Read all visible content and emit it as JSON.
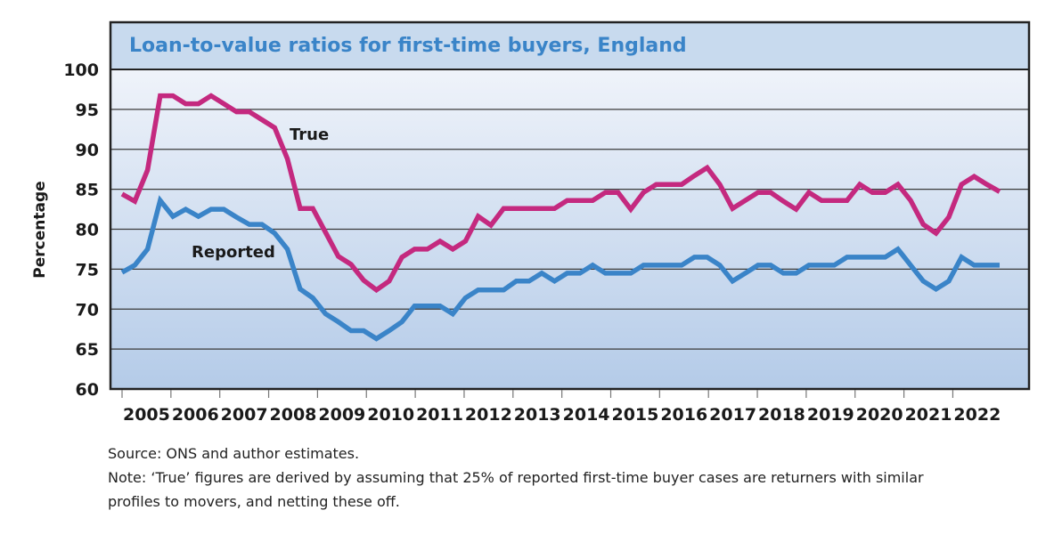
{
  "chart_data": {
    "type": "line",
    "title": "Loan-to-value ratios for first-time buyers, England",
    "xlabel": "",
    "ylabel": "Percentage",
    "ylim": [
      60,
      100
    ],
    "yticks": [
      60,
      65,
      70,
      75,
      80,
      85,
      90,
      95,
      100
    ],
    "ytick_labels": [
      "60",
      "65",
      "70",
      "75",
      "80",
      "85",
      "90",
      "95",
      "100"
    ],
    "xtick_labels": [
      "2005",
      "2006",
      "2007",
      "2008",
      "2009",
      "2010",
      "2011",
      "2012",
      "2013",
      "2014",
      "2015",
      "2016",
      "2017",
      "2018",
      "2019",
      "2020",
      "2021",
      "2022"
    ],
    "x_frequency": "quarterly",
    "x_start": "2005 Q1",
    "grid": "horizontal",
    "legend": "inline labels",
    "series": [
      {
        "name": "True",
        "label": "True",
        "color": "#c4297f",
        "values": [
          84.4,
          83.5,
          87.4,
          96.7,
          96.7,
          95.7,
          95.7,
          96.7,
          95.7,
          94.7,
          94.7,
          93.7,
          92.7,
          88.8,
          82.6,
          82.6,
          79.6,
          76.6,
          75.6,
          73.6,
          72.4,
          73.5,
          76.5,
          77.5,
          77.5,
          78.5,
          77.5,
          78.5,
          81.6,
          80.5,
          82.6,
          82.6,
          82.6,
          82.6,
          82.6,
          83.6,
          83.6,
          83.6,
          84.6,
          84.6,
          82.5,
          84.6,
          85.6,
          85.6,
          85.6,
          86.7,
          87.7,
          85.6,
          82.6,
          83.6,
          84.6,
          84.6,
          83.5,
          82.5,
          84.6,
          83.6,
          83.6,
          83.6,
          85.6,
          84.6,
          84.6,
          85.6,
          83.6,
          80.6,
          79.5,
          81.5,
          85.6,
          86.6,
          85.6,
          84.7
        ]
      },
      {
        "name": "Reported",
        "label": "Reported",
        "color": "#3a84c8",
        "values": [
          74.6,
          75.5,
          77.5,
          83.6,
          81.6,
          82.5,
          81.6,
          82.5,
          82.5,
          81.5,
          80.6,
          80.6,
          79.5,
          77.5,
          72.5,
          71.4,
          69.4,
          68.4,
          67.3,
          67.3,
          66.3,
          67.3,
          68.4,
          70.4,
          70.4,
          70.4,
          69.4,
          71.4,
          72.4,
          72.4,
          72.4,
          73.5,
          73.5,
          74.5,
          73.5,
          74.5,
          74.5,
          75.5,
          74.5,
          74.5,
          74.5,
          75.5,
          75.5,
          75.5,
          75.5,
          76.5,
          76.5,
          75.5,
          73.5,
          74.5,
          75.5,
          75.5,
          74.5,
          74.5,
          75.5,
          75.5,
          75.5,
          76.5,
          76.5,
          76.5,
          76.5,
          77.5,
          75.5,
          73.5,
          72.5,
          73.5,
          76.5,
          75.5,
          75.5,
          75.5
        ]
      }
    ]
  },
  "notes": {
    "source": "Source: ONS and author estimates.",
    "note_line1": "Note: ‘True’ figures are derived by assuming that 25% of reported first-time buyer cases are returners with similar",
    "note_line2": "profiles to movers, and netting these off."
  }
}
